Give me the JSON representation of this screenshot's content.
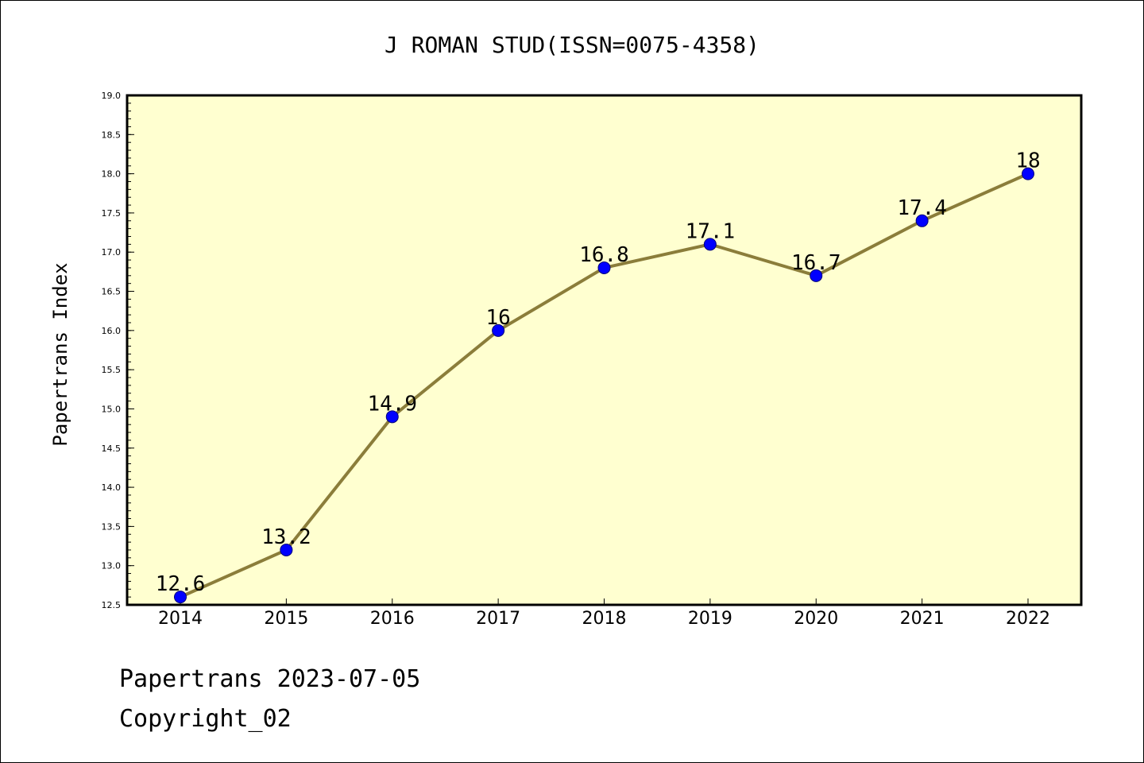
{
  "chart_data": {
    "type": "line",
    "title": "J ROMAN STUD(ISSN=0075-4358)",
    "xlabel": "",
    "ylabel": "Papertrans Index",
    "categories": [
      "2014",
      "2015",
      "2016",
      "2017",
      "2018",
      "2019",
      "2020",
      "2021",
      "2022"
    ],
    "series": [
      {
        "values": [
          12.6,
          13.2,
          14.9,
          16.0,
          16.8,
          17.1,
          16.7,
          17.4,
          18.0
        ],
        "data_labels": [
          "12.6",
          "13.2",
          "14.9",
          "16",
          "16.8",
          "17.1",
          "16.7",
          "17.4",
          "18"
        ]
      }
    ],
    "ylim": [
      12.5,
      19.0
    ],
    "yticks": [
      "12.5",
      "13.0",
      "13.5",
      "14.0",
      "14.5",
      "15.0",
      "15.5",
      "16.0",
      "16.5",
      "17.0",
      "17.5",
      "18.0",
      "18.5",
      "19.0"
    ],
    "grid": false,
    "colors": {
      "plot_background": "#ffffd0",
      "line": "#8b7d3a",
      "marker": "#0000ff"
    }
  },
  "footer": {
    "line1": "Papertrans 2023-07-05",
    "line2": "Copyright_02"
  }
}
